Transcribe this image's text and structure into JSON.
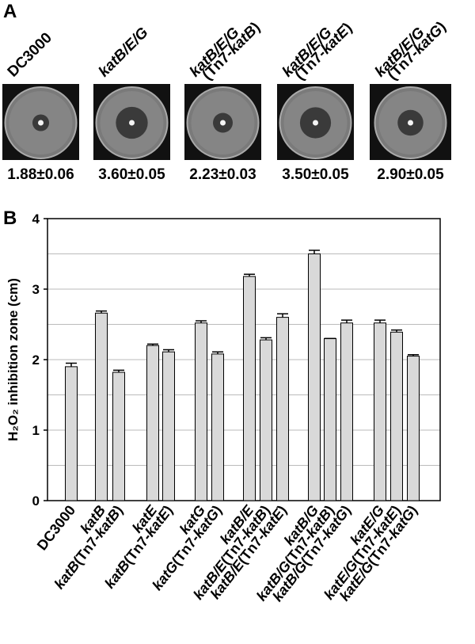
{
  "panel_a": {
    "label": "A",
    "plates": [
      {
        "label": [
          "DC3000"
        ],
        "value": 1.88,
        "error": 0.06,
        "value_label": "1.88±0.06"
      },
      {
        "label": [
          "katB/E/G"
        ],
        "value": 3.6,
        "error": 0.05,
        "value_label": "3.60±0.05"
      },
      {
        "label": [
          "katB/E/G",
          "(Tn7-katB)"
        ],
        "value": 2.23,
        "error": 0.03,
        "value_label": "2.23±0.03"
      },
      {
        "label": [
          "katB/E/G",
          "(Tn7-katE)"
        ],
        "value": 3.5,
        "error": 0.05,
        "value_label": "3.50±0.05"
      },
      {
        "label": [
          "katB/E/G",
          "(Tn7-katG)"
        ],
        "value": 2.9,
        "error": 0.05,
        "value_label": "2.90±0.05"
      }
    ]
  },
  "chart_data": {
    "type": "bar",
    "panel_label": "B",
    "y_label": "H₂O₂ inhibition zone (cm)",
    "categories": [
      "DC3000",
      "katB",
      "katB(Tn7-katB)",
      "katE",
      "katB(Tn7-katE)",
      "katG",
      "katG(Tn7-katG)",
      "katB/E",
      "katB/E(Tn7-katB)",
      "katB/E(Tn7-katE)",
      "katB/G",
      "katB/G(Tn7-katB)",
      "katB/G(Tn7-katG)",
      "katE/G",
      "katE/G(Tn7-katE)",
      "katE/G(Tn7-katG)"
    ],
    "values": [
      1.9,
      2.66,
      1.82,
      2.2,
      2.11,
      2.52,
      2.08,
      3.18,
      2.28,
      2.6,
      3.5,
      2.3,
      2.52,
      2.52,
      2.39,
      2.05
    ],
    "errors": [
      0.05,
      0.03,
      0.03,
      0.02,
      0.03,
      0.03,
      0.03,
      0.03,
      0.03,
      0.05,
      0.05,
      0,
      0.04,
      0.04,
      0.03,
      0.02
    ],
    "color": "#d9d9d9",
    "ylim": [
      0,
      4
    ],
    "yticks": [
      0,
      1,
      2,
      3,
      4
    ],
    "gridlines": [
      0.5,
      1,
      1.5,
      2,
      2.5,
      3,
      3.5
    ]
  }
}
